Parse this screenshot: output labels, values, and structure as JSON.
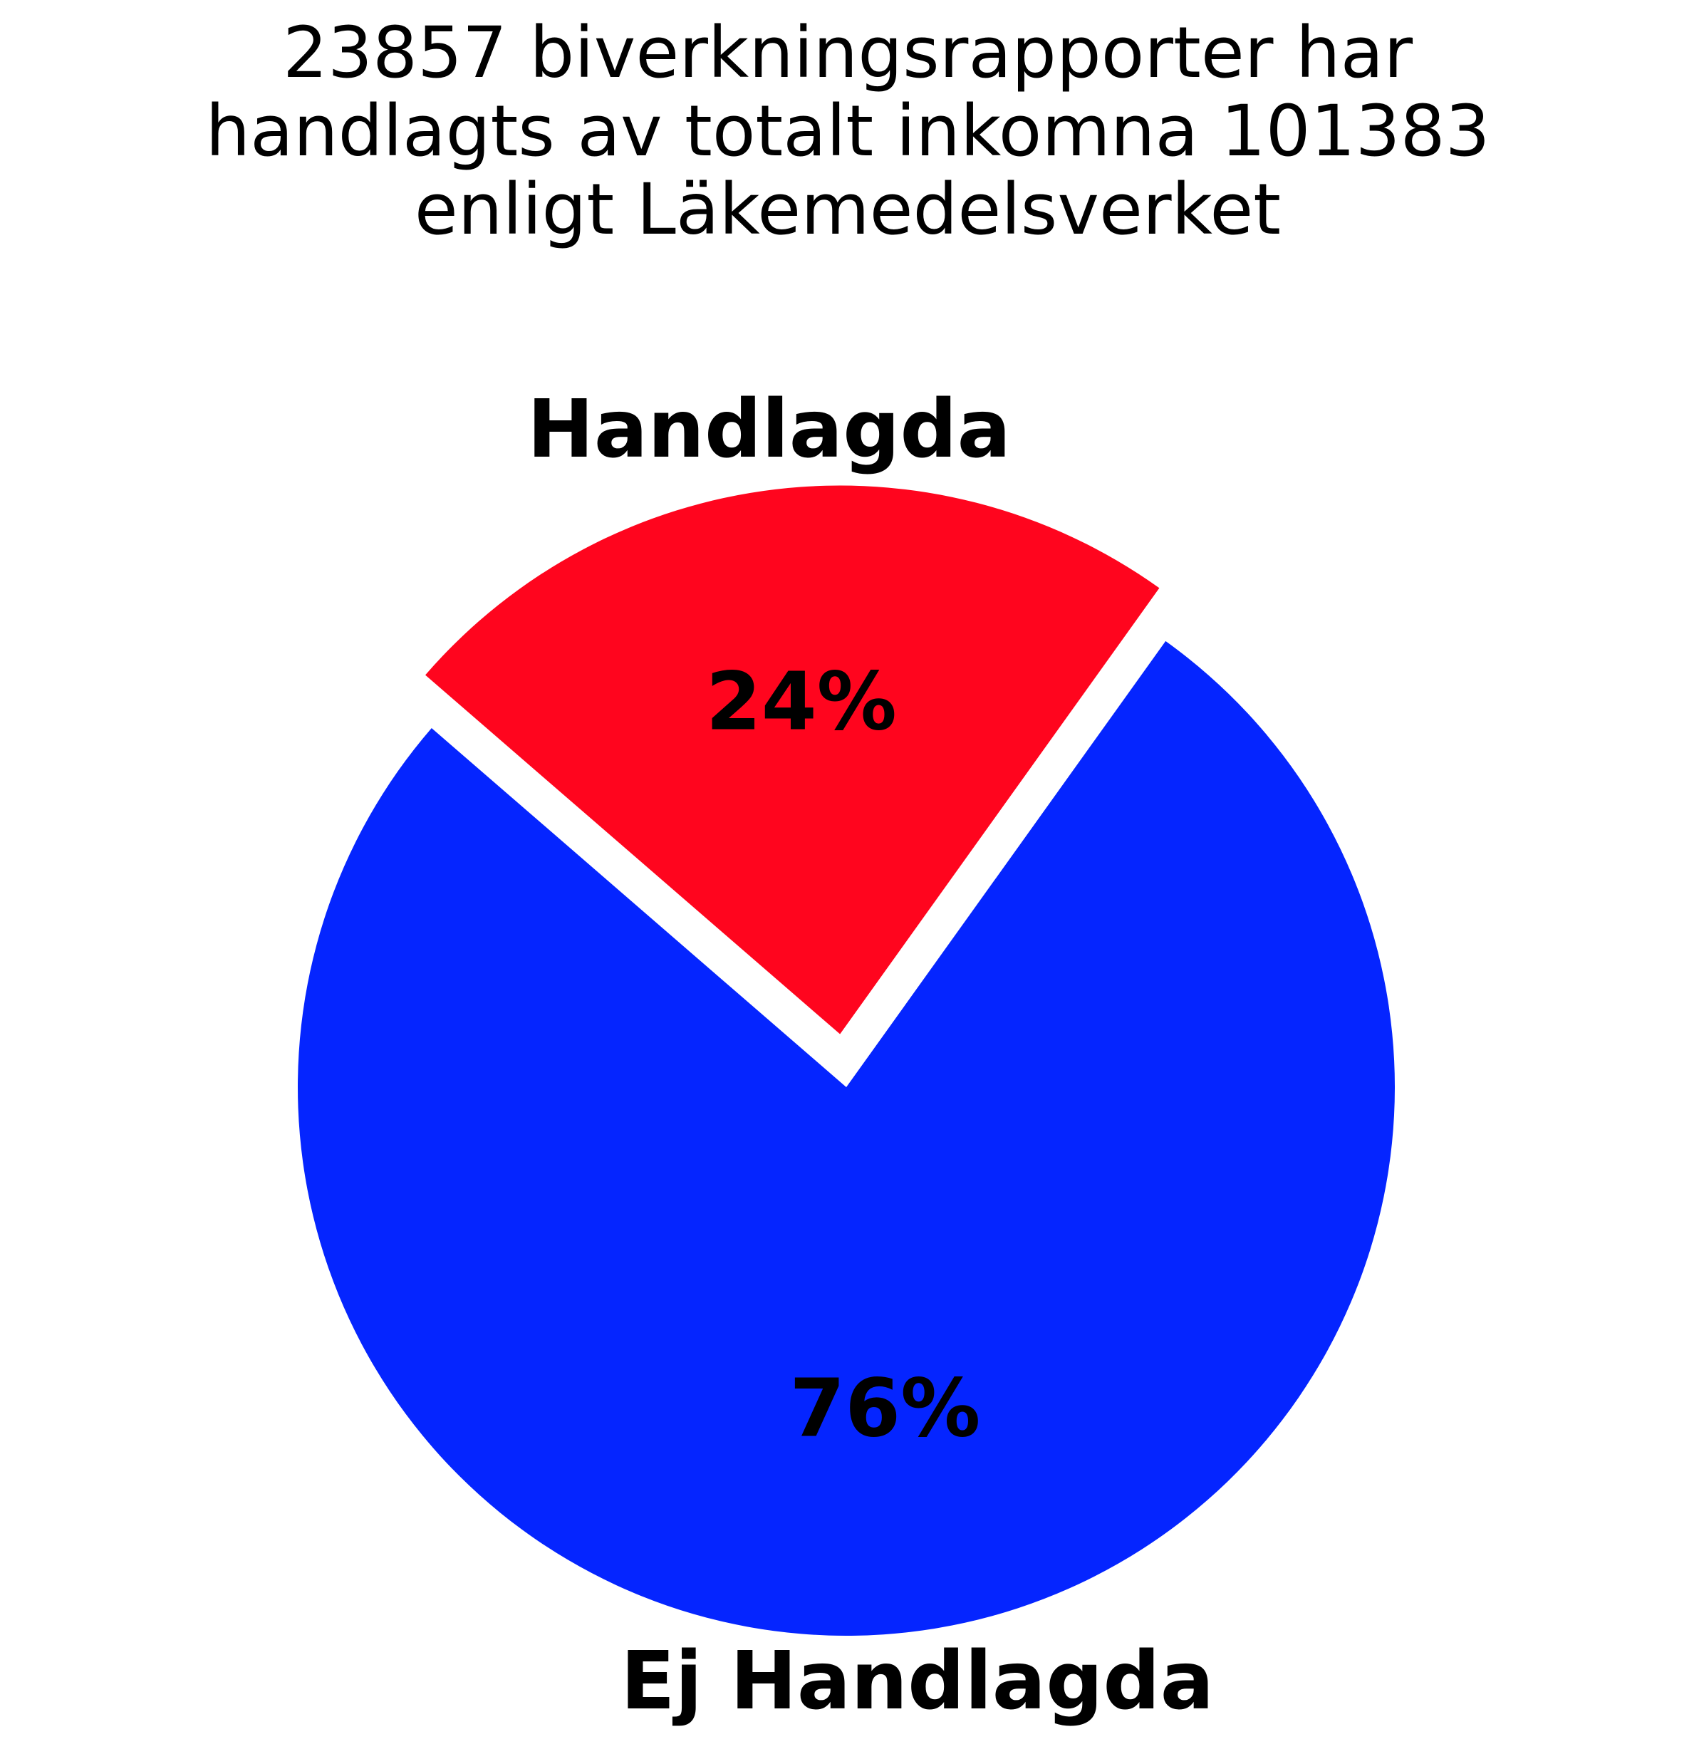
{
  "chart_data": {
    "type": "pie",
    "title_lines": [
      "23857 biverkningsrapporter har",
      "handlagts av totalt inkomna 101383",
      "enligt Läkemedelsverket"
    ],
    "slices": [
      {
        "label": "Handlagda",
        "value": 23857,
        "percent_label": "24%",
        "color": "#ff051e",
        "exploded": true
      },
      {
        "label": "Ej Handlagda",
        "value": 77526,
        "percent_label": "76%",
        "color": "#0525ff",
        "exploded": false
      }
    ],
    "total": 101383
  }
}
